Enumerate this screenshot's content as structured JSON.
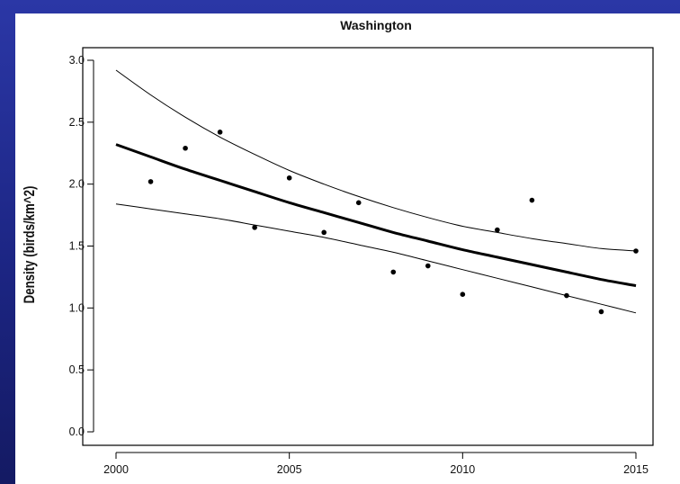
{
  "chart_data": {
    "type": "scatter",
    "title": "Washington",
    "xlabel": "",
    "ylabel": "Density (birds/km^2)",
    "xlim": [
      2000,
      2015
    ],
    "ylim": [
      0,
      3
    ],
    "x_ticks": [
      "2000",
      "2005",
      "2010",
      "2015"
    ],
    "y_ticks": [
      "0.0",
      "0.5",
      "1.0",
      "1.5",
      "2.0",
      "2.5",
      "3.0"
    ],
    "grid": false,
    "legend": "none",
    "points": {
      "x": [
        2001,
        2002,
        2003,
        2004,
        2005,
        2006,
        2007,
        2008,
        2009,
        2010,
        2011,
        2012,
        2013,
        2014,
        2015
      ],
      "y": [
        2.02,
        2.29,
        2.42,
        1.65,
        2.05,
        1.61,
        1.85,
        1.29,
        1.34,
        1.11,
        1.63,
        1.87,
        1.1,
        0.97,
        1.46
      ]
    },
    "fit": {
      "x": [
        2000,
        2001,
        2002,
        2003,
        2004,
        2005,
        2006,
        2007,
        2008,
        2009,
        2010,
        2011,
        2012,
        2013,
        2014,
        2015
      ],
      "y": [
        2.32,
        2.22,
        2.12,
        2.03,
        1.94,
        1.85,
        1.77,
        1.69,
        1.61,
        1.54,
        1.47,
        1.41,
        1.35,
        1.29,
        1.23,
        1.18
      ]
    },
    "upper_ci": {
      "x": [
        2000,
        2001,
        2002,
        2003,
        2004,
        2005,
        2006,
        2007,
        2008,
        2009,
        2010,
        2011,
        2012,
        2013,
        2014,
        2015
      ],
      "y": [
        2.92,
        2.72,
        2.54,
        2.38,
        2.24,
        2.11,
        2.0,
        1.9,
        1.81,
        1.73,
        1.66,
        1.61,
        1.56,
        1.52,
        1.48,
        1.46
      ]
    },
    "lower_ci": {
      "x": [
        2000,
        2001,
        2002,
        2003,
        2004,
        2005,
        2006,
        2007,
        2008,
        2009,
        2010,
        2011,
        2012,
        2013,
        2014,
        2015
      ],
      "y": [
        1.84,
        1.8,
        1.76,
        1.72,
        1.67,
        1.62,
        1.57,
        1.51,
        1.45,
        1.38,
        1.31,
        1.24,
        1.17,
        1.1,
        1.03,
        0.96
      ]
    },
    "colors": {
      "background": "#1f2a8c",
      "panel": "#ffffff",
      "ink": "#000000"
    }
  }
}
